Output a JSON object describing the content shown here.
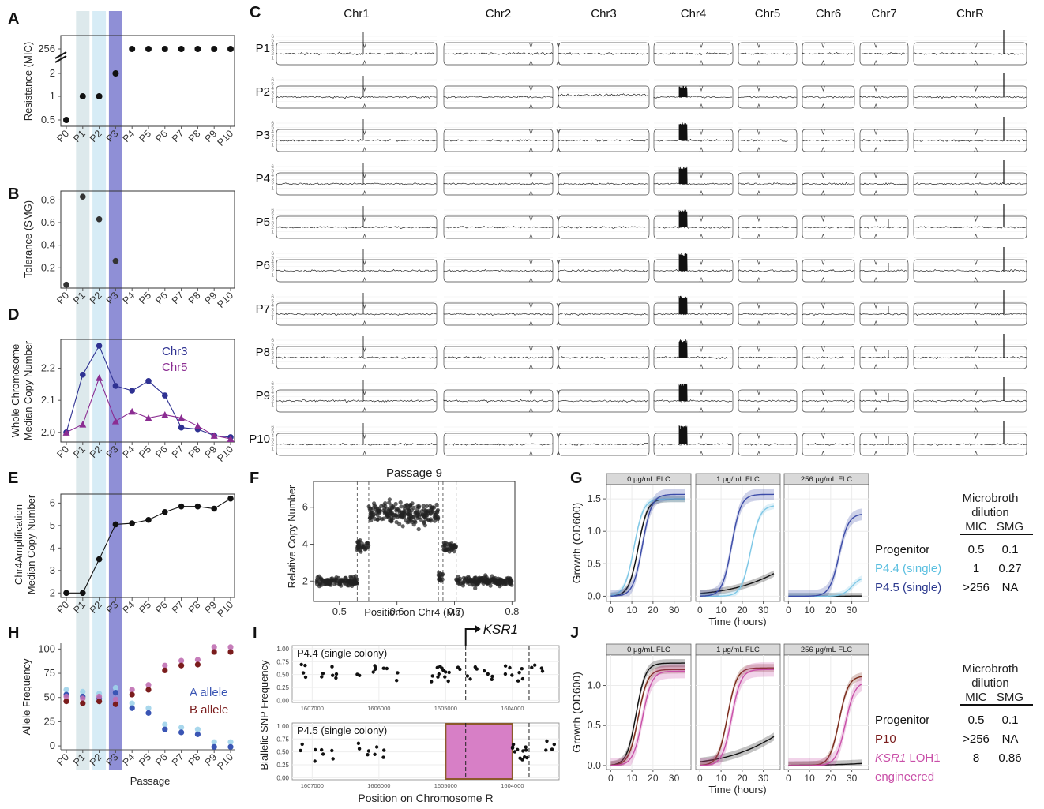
{
  "passages": [
    "P0",
    "P1",
    "P2",
    "P3",
    "P4",
    "P5",
    "P6",
    "P7",
    "P8",
    "P9",
    "P10"
  ],
  "highlight_colors": {
    "P1": "#dde9ec",
    "P2": "#d7ecf6",
    "P3": "#8f8fd6"
  },
  "panel_letters": [
    "A",
    "B",
    "C",
    "D",
    "E",
    "F",
    "G",
    "H",
    "I",
    "J"
  ],
  "chart_data": [
    {
      "panel": "A",
      "type": "scatter",
      "ylabel": "Resistance (MIC)",
      "y_tick_labels": [
        "0.5",
        "1",
        "2",
        "256"
      ],
      "x": [
        "P0",
        "P1",
        "P2",
        "P3",
        "P4",
        "P5",
        "P6",
        "P7",
        "P8",
        "P9",
        "P10"
      ],
      "values": [
        0.5,
        1,
        1,
        2,
        256,
        256,
        256,
        256,
        256,
        256,
        256
      ],
      "scale": "log2 with axis break between 2 and 256"
    },
    {
      "panel": "B",
      "type": "scatter",
      "ylabel": "Tolerance (SMG)",
      "y_ticks": [
        0.2,
        0.4,
        0.6,
        0.8
      ],
      "ylim": [
        0.02,
        0.88
      ],
      "x": [
        "P0",
        "P1",
        "P2",
        "P3"
      ],
      "values": [
        0.05,
        0.83,
        0.63,
        0.26
      ]
    },
    {
      "panel": "C",
      "type": "line",
      "chromosomes": [
        "Chr1",
        "Chr2",
        "Chr3",
        "Chr4",
        "Chr5",
        "Chr6",
        "Chr7",
        "ChrR"
      ],
      "rows": [
        "P1",
        "P2",
        "P3",
        "P4",
        "P5",
        "P6",
        "P7",
        "P8",
        "P9",
        "P10"
      ],
      "y_tick_labels": [
        "1",
        "2",
        "3",
        "4",
        "5",
        "6"
      ],
      "chr4_amplification_height": [
        0,
        4.5,
        6,
        6,
        6,
        6,
        6,
        6,
        6,
        6.3
      ]
    },
    {
      "panel": "D",
      "type": "line",
      "ylabel": "Whole Chromosome Median Copy Number",
      "y_ticks": [
        2.0,
        2.1,
        2.2
      ],
      "ylim": [
        1.97,
        2.29
      ],
      "x": [
        "P0",
        "P1",
        "P2",
        "P3",
        "P4",
        "P5",
        "P6",
        "P7",
        "P8",
        "P9",
        "P10"
      ],
      "series": [
        {
          "name": "Chr3",
          "color": "#2e3192",
          "marker": "circle",
          "values": [
            2.0,
            2.18,
            2.27,
            2.145,
            2.13,
            2.16,
            2.115,
            2.015,
            2.01,
            1.99,
            1.985
          ]
        },
        {
          "name": "Chr5",
          "color": "#8b2d92",
          "marker": "triangle",
          "values": [
            2.0,
            2.025,
            2.17,
            2.035,
            2.065,
            2.045,
            2.055,
            2.045,
            2.02,
            1.99,
            1.98
          ]
        }
      ]
    },
    {
      "panel": "E",
      "type": "line",
      "ylabel": "Chr4Amplification Median Copy Number",
      "y_ticks": [
        2,
        3,
        4,
        5,
        6
      ],
      "ylim": [
        1.8,
        6.4
      ],
      "x": [
        "P0",
        "P1",
        "P2",
        "P3",
        "P4",
        "P5",
        "P6",
        "P7",
        "P8",
        "P9",
        "P10"
      ],
      "values": [
        2.0,
        2.0,
        3.5,
        5.05,
        5.1,
        5.25,
        5.6,
        5.85,
        5.85,
        5.75,
        6.2
      ]
    },
    {
      "panel": "F",
      "type": "scatter",
      "title": "Passage 9",
      "xlabel": "Position on Chr4 (Mb)",
      "ylabel": "Relative Copy Number",
      "x_ticks": [
        0.5,
        0.6,
        0.7,
        0.8
      ],
      "y_ticks": [
        2,
        4,
        6
      ],
      "xlim": [
        0.455,
        0.805
      ],
      "ylim": [
        0.9,
        7.4
      ],
      "vlines": [
        0.531,
        0.551,
        0.672,
        0.68,
        0.703
      ],
      "segments": [
        {
          "x0": 0.46,
          "x1": 0.531,
          "level": 2.0
        },
        {
          "x0": 0.531,
          "x1": 0.551,
          "level": 3.9
        },
        {
          "x0": 0.551,
          "x1": 0.672,
          "level": 5.7
        },
        {
          "x0": 0.672,
          "x1": 0.68,
          "level": 2.2
        },
        {
          "x0": 0.68,
          "x1": 0.703,
          "level": 3.8
        },
        {
          "x0": 0.703,
          "x1": 0.8,
          "level": 2.0
        }
      ]
    },
    {
      "panel": "G",
      "type": "line",
      "ylabel": "Growth (OD600)",
      "xlabel": "Time (hours)",
      "facets": [
        "0 μg/mL FLC",
        "1 μg/mL FLC",
        "256 μg/mL FLC"
      ],
      "x_ticks": [
        0,
        10,
        20,
        30
      ],
      "y_ticks": [
        0.0,
        0.5,
        1.0,
        1.5
      ],
      "xlim": [
        -2,
        38
      ],
      "ylim": [
        -0.08,
        1.72
      ],
      "series": [
        {
          "name": "Progenitor",
          "color": "#111111",
          "plateau": [
            1.5,
            1.05,
            0.02
          ],
          "midpoint": [
            13,
            45,
            60
          ]
        },
        {
          "name": "P4.4 (single)",
          "color": "#7fc8e6",
          "plateau": [
            1.5,
            1.4,
            0.3
          ],
          "midpoint": [
            11,
            24,
            30
          ]
        },
        {
          "name": "P4.5 (single)",
          "color": "#3b4ba8",
          "plateau": [
            1.57,
            1.57,
            1.27
          ],
          "midpoint": [
            15,
            15,
            24
          ]
        }
      ],
      "table": {
        "header": [
          "Microbroth",
          "dilution",
          "MIC",
          "SMG"
        ],
        "rows": [
          {
            "label": "Progenitor",
            "mic": "0.5",
            "smg": "0.1",
            "color": "#111111"
          },
          {
            "label": "P4.4 (single)",
            "mic": "1",
            "smg": "0.27",
            "color": "#5bbfe0"
          },
          {
            "label": "P4.5 (single)",
            "mic": ">256",
            "smg": "NA",
            "color": "#2e3b8f"
          }
        ]
      }
    },
    {
      "panel": "H",
      "type": "scatter",
      "ylabel": "Allele Frequency",
      "xlabel": "Passage",
      "y_ticks": [
        0,
        25,
        50,
        75,
        100
      ],
      "ylim": [
        -4,
        106
      ],
      "x": [
        "P0",
        "P1",
        "P2",
        "P3",
        "P4",
        "P5",
        "P6",
        "P7",
        "P8",
        "P9",
        "P10"
      ],
      "series": [
        {
          "name": "A allele",
          "color": "#3a55b4",
          "values": [
            55,
            53,
            51,
            57,
            41,
            36,
            19,
            16,
            14,
            1,
            1
          ]
        },
        {
          "name": "B allele",
          "color": "#7a1c1c",
          "values": [
            48,
            46,
            48,
            45,
            55,
            60,
            80,
            85,
            86,
            99,
            99
          ]
        }
      ]
    },
    {
      "panel": "I",
      "type": "scatter",
      "ylabel": "Biallelic SNP Frequency",
      "xlabel": "Position on Chromosome R",
      "gene_label": "KSR1",
      "x_tick_labels": [
        "1607000",
        "1606000",
        "1605000",
        "1604000"
      ],
      "y_ticks": [
        0.0,
        0.25,
        0.5,
        0.75,
        1.0
      ],
      "facets": [
        {
          "label": "P4.4 (single colony)"
        },
        {
          "label": "P4.5 (single colony)",
          "loh_region": [
            1605000,
            1604000
          ]
        }
      ]
    },
    {
      "panel": "J",
      "type": "line",
      "ylabel": "Growth (OD600)",
      "xlabel": "Time (hours)",
      "facets": [
        "0 μg/mL FLC",
        "1 μg/mL FLC",
        "256 μg/mL FLC"
      ],
      "x_ticks": [
        0,
        10,
        20,
        30
      ],
      "y_ticks": [
        0.0,
        0.5,
        1.0
      ],
      "xlim": [
        -2,
        38
      ],
      "ylim": [
        -0.05,
        1.38
      ],
      "series": [
        {
          "name": "Progenitor",
          "color": "#111111",
          "plateau": [
            1.28,
            0.95,
            0.2
          ],
          "midpoint": [
            12,
            42,
            62
          ]
        },
        {
          "name": "P10",
          "color": "#7a2a1a",
          "plateau": [
            1.2,
            1.22,
            1.12
          ],
          "midpoint": [
            13,
            13,
            24
          ]
        },
        {
          "name": "KSR1 LOH1 engineered",
          "color": "#c94fa8",
          "plateau": [
            1.18,
            1.2,
            1.05
          ],
          "midpoint": [
            15,
            15,
            27
          ]
        }
      ],
      "table": {
        "header": [
          "Microbroth",
          "dilution",
          "MIC",
          "SMG"
        ],
        "rows": [
          {
            "label": "Progenitor",
            "mic": "0.5",
            "smg": "0.1",
            "color": "#111111"
          },
          {
            "label": "P10",
            "mic": ">256",
            "smg": "NA",
            "color": "#7a1c1c"
          },
          {
            "label_italic": "KSR1",
            "label": " LOH1",
            "label2": "engineered",
            "mic": "8",
            "smg": "0.86",
            "color": "#c94fa8"
          }
        ]
      }
    }
  ]
}
